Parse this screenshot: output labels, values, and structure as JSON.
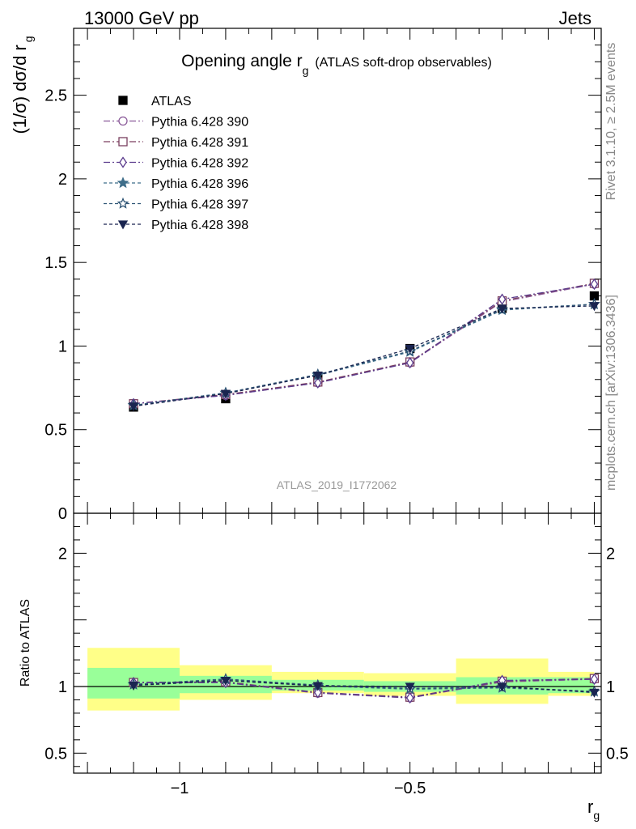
{
  "header": {
    "left": "13000 GeV pp",
    "right": "Jets"
  },
  "side_labels": {
    "rivet": "Rivet 3.1.10, ≥ 2.5M events",
    "mcplots": "mcplots.cern.ch [arXiv:1306.3436]"
  },
  "watermark": "ATLAS_2019_I1772062",
  "chart_data": [
    {
      "type": "line",
      "panel": "main",
      "title": "Opening angle r",
      "title_sub": "g",
      "title_suffix": "(ATLAS soft-drop observables)",
      "ylabel": "(1/σ) dσ/d r",
      "ylabel_sub": "g",
      "xlabel": "r",
      "xlabel_sub": "g",
      "xlim": [
        -1.23,
        -0.085
      ],
      "ylim": [
        0,
        2.9
      ],
      "x_ticks": [
        -1,
        -0.5
      ],
      "x_tick_labels": [
        "−1",
        "−0.5"
      ],
      "y_ticks": [
        0,
        0.5,
        1,
        1.5,
        2,
        2.5
      ],
      "y_tick_labels": [
        "0",
        "0.5",
        "1",
        "1.5",
        "2",
        "2.5"
      ],
      "x": [
        -1.1,
        -0.9,
        -0.7,
        -0.5,
        -0.3,
        -0.1
      ],
      "legend_placement": "top-left",
      "series": [
        {
          "name": "ATLAS",
          "color": "#000000",
          "marker": "square-filled",
          "dash": "none",
          "values": [
            0.635,
            0.685,
            0.82,
            0.985,
            1.225,
            1.3
          ]
        },
        {
          "name": "Pythia 6.428 390",
          "color": "#8a5a99",
          "marker": "circle-open",
          "dash": "8,3,2,3",
          "values": [
            0.655,
            0.705,
            0.78,
            0.9,
            1.265,
            1.37
          ]
        },
        {
          "name": "Pythia 6.428 391",
          "color": "#7a3f5f",
          "marker": "square-open",
          "dash": "8,3,2,3",
          "values": [
            0.655,
            0.71,
            0.785,
            0.905,
            1.27,
            1.375
          ]
        },
        {
          "name": "Pythia 6.428 392",
          "color": "#5a3a8c",
          "marker": "diamond-open",
          "dash": "8,3,2,3",
          "values": [
            0.655,
            0.705,
            0.78,
            0.9,
            1.28,
            1.37
          ]
        },
        {
          "name": "Pythia 6.428 396",
          "color": "#3f6e8a",
          "marker": "star-filled",
          "dash": "4,3",
          "values": [
            0.645,
            0.72,
            0.825,
            0.965,
            1.215,
            1.25
          ]
        },
        {
          "name": "Pythia 6.428 397",
          "color": "#2f5575",
          "marker": "star-open",
          "dash": "4,3",
          "values": [
            0.645,
            0.72,
            0.83,
            0.97,
            1.22,
            1.25
          ]
        },
        {
          "name": "Pythia 6.428 398",
          "color": "#1a2550",
          "marker": "triangle-down-filled",
          "dash": "4,3",
          "values": [
            0.64,
            0.715,
            0.825,
            0.985,
            1.225,
            1.24
          ]
        }
      ]
    },
    {
      "type": "line",
      "panel": "ratio",
      "ylabel": "Ratio to ATLAS",
      "xlim": [
        -1.23,
        -0.085
      ],
      "ylim": [
        0.35,
        2.3
      ],
      "y_ticks": [
        0.5,
        1,
        2
      ],
      "y_tick_labels": [
        "0.5",
        "1",
        "2"
      ],
      "reference_line": 1,
      "x": [
        -1.1,
        -0.9,
        -0.7,
        -0.5,
        -0.3,
        -0.1
      ],
      "bands": {
        "edges": [
          -1.2,
          -1.0,
          -0.8,
          -0.6,
          -0.4,
          -0.2,
          -0.1
        ],
        "inner": {
          "color": "#99ff99",
          "low": [
            0.91,
            0.95,
            0.97,
            0.96,
            0.94,
            0.95
          ],
          "high": [
            1.14,
            1.08,
            1.05,
            1.04,
            1.07,
            1.07
          ]
        },
        "outer": {
          "color": "#ffff88",
          "low": [
            0.82,
            0.9,
            0.95,
            0.93,
            0.87,
            0.93
          ],
          "high": [
            1.29,
            1.16,
            1.11,
            1.1,
            1.21,
            1.11
          ]
        }
      },
      "series": [
        {
          "name": "Pythia 6.428 390",
          "values": [
            1.03,
            1.03,
            0.95,
            0.915,
            1.035,
            1.055
          ]
        },
        {
          "name": "Pythia 6.428 391",
          "values": [
            1.03,
            1.035,
            0.955,
            0.92,
            1.04,
            1.06
          ]
        },
        {
          "name": "Pythia 6.428 392",
          "values": [
            1.03,
            1.03,
            0.955,
            0.915,
            1.045,
            1.055
          ]
        },
        {
          "name": "Pythia 6.428 396",
          "values": [
            1.015,
            1.055,
            1.005,
            0.98,
            0.99,
            0.962
          ]
        },
        {
          "name": "Pythia 6.428 397",
          "values": [
            1.015,
            1.055,
            1.01,
            0.985,
            0.995,
            0.962
          ]
        },
        {
          "name": "Pythia 6.428 398",
          "values": [
            1.008,
            1.045,
            1.005,
            1.0,
            1.0,
            0.955
          ]
        }
      ]
    }
  ]
}
